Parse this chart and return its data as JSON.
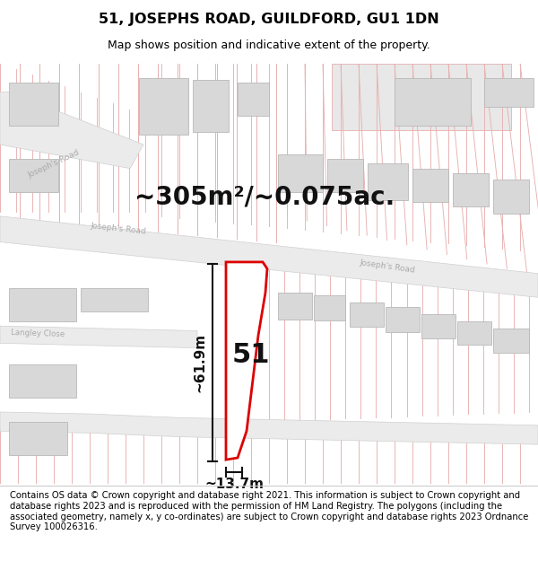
{
  "title": "51, JOSEPHS ROAD, GUILDFORD, GU1 1DN",
  "subtitle": "Map shows position and indicative extent of the property.",
  "area_label": "~305m²/~0.075ac.",
  "plot_number": "51",
  "dim_width": "~13.7m",
  "dim_height": "~61.9m",
  "footer_text": "Contains OS data © Crown copyright and database right 2021. This information is subject to Crown copyright and database rights 2023 and is reproduced with the permission of HM Land Registry. The polygons (including the associated geometry, namely x, y co-ordinates) are subject to Crown copyright and database rights 2023 Ordnance Survey 100026316.",
  "bg_color": "#ffffff",
  "line_color": "#e8b0b0",
  "road_fill": "#ebebeb",
  "road_edge": "#d0d0d0",
  "bldg_fill": "#d8d8d8",
  "bldg_edge": "#b8b8b8",
  "plot_outline_color": "#dd0000",
  "dim_line_color": "#111111",
  "label_color": "#111111",
  "road_label_color": "#aaaaaa",
  "title_fontsize": 11.5,
  "subtitle_fontsize": 9,
  "area_fontsize": 20,
  "plot_number_fontsize": 22,
  "dim_fontsize": 11,
  "footer_fontsize": 7.2
}
